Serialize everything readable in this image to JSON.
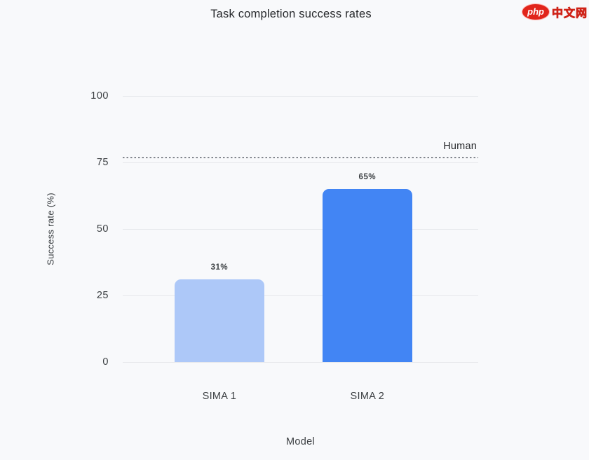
{
  "logo": {
    "badge": "php",
    "text": "中文网",
    "badge_color": "#e1251b"
  },
  "chart_data": {
    "type": "bar",
    "title": "Task completion success rates",
    "xlabel": "Model",
    "ylabel": "Success rate (%)",
    "categories": [
      "SIMA 1",
      "SIMA 2"
    ],
    "values": [
      31,
      65
    ],
    "value_labels": [
      "31%",
      "65%"
    ],
    "bar_colors": [
      "#adc8f8",
      "#4285f4"
    ],
    "ylim": [
      0,
      100
    ],
    "yticks": [
      0,
      25,
      50,
      75,
      100
    ],
    "grid": true,
    "legend": false,
    "reference_line": {
      "label": "Human",
      "value": 77,
      "style": "dashed",
      "color": "#83878e"
    },
    "layout": {
      "band_center_fracs": [
        0.272,
        0.688
      ],
      "bar_width_frac": 0.2525
    }
  },
  "colors": {
    "background": "#f8f9fb",
    "gridline": "#e5e7ea",
    "text": "#3c4043"
  }
}
